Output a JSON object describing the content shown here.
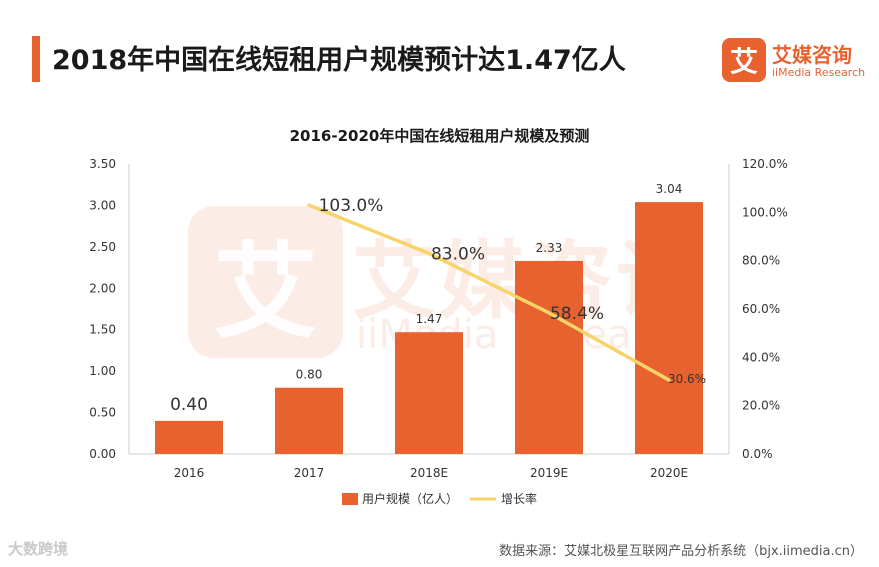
{
  "header": {
    "title": "2018年中国在线短租用户规模预计达1.47亿人"
  },
  "brand": {
    "logo_char": "艾",
    "name": "艾媒咨询",
    "sub": "iiMedia Research"
  },
  "watermark": {
    "logo_char": "艾",
    "name": "艾媒咨询",
    "sub": "iiMedia Research"
  },
  "footer": {
    "source": "数据来源：艾媒北极星互联网产品分析系统（bjx.iimedia.cn）",
    "corner_mark": "大数跨境"
  },
  "colors": {
    "bar": "#e8622f",
    "line": "#f7d36a",
    "brand": "#e8622f"
  },
  "chart_data": {
    "type": "bar",
    "title": "2016-2020年中国在线短租用户规模及预测",
    "categories": [
      "2016",
      "2017",
      "2018E",
      "2019E",
      "2020E"
    ],
    "series": [
      {
        "name": "用户规模（亿人）",
        "type": "bar",
        "axis": "left",
        "values": [
          0.4,
          0.8,
          1.47,
          2.33,
          3.04
        ],
        "labels": [
          "0.40",
          "0.80",
          "1.47",
          "2.33",
          "3.04"
        ]
      },
      {
        "name": "增长率",
        "type": "line",
        "axis": "right",
        "values": [
          null,
          103.0,
          83.0,
          58.4,
          30.6
        ],
        "labels": [
          "",
          "103.0%",
          "83.0%",
          "58.4%",
          "30.6%"
        ]
      }
    ],
    "y_left": {
      "min": 0,
      "max": 3.5,
      "ticks": [
        "0.00",
        "0.50",
        "1.00",
        "1.50",
        "2.00",
        "2.50",
        "3.00",
        "3.50"
      ]
    },
    "y_right": {
      "min": 0,
      "max": 120,
      "ticks": [
        "0.0%",
        "20.0%",
        "40.0%",
        "60.0%",
        "80.0%",
        "100.0%",
        "120.0%"
      ]
    },
    "legend": [
      "用户规模（亿人）",
      "增长率"
    ],
    "legend_position": "bottom",
    "grid": false
  }
}
